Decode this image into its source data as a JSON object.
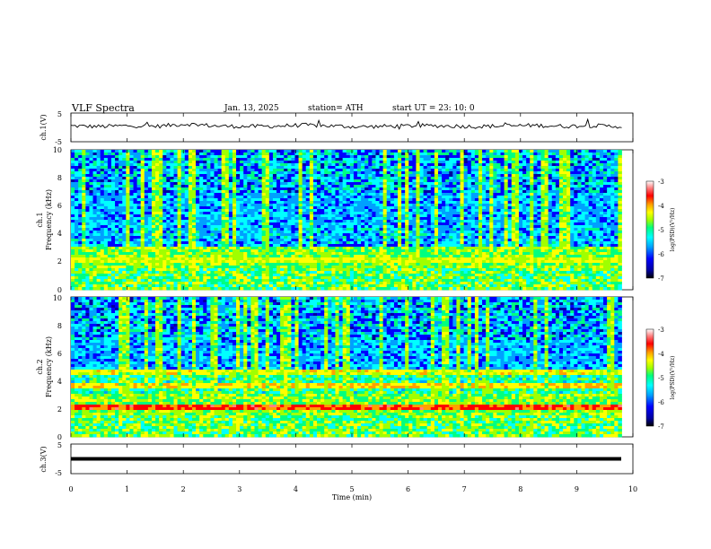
{
  "header": {
    "title": "VLF Spectra",
    "date": "Jan. 13, 2025",
    "station": "station= ATH",
    "start": "start UT =  23: 10: 0"
  },
  "chart_data": [
    {
      "type": "line",
      "panel": "ch1-waveform",
      "ylabel": "ch.1(V)",
      "ylim": [
        -5,
        5
      ],
      "ytick_labels": [
        "5",
        "-5"
      ],
      "series": [
        {
          "values": [
            0.5,
            0.3,
            0.6,
            0.4,
            1.2,
            0.5,
            0.3,
            0.4,
            0.8,
            0.5,
            0.2,
            0.4,
            0.6,
            0.5,
            0.3,
            0.5,
            0.7,
            0.4,
            0.6,
            0.3
          ]
        }
      ],
      "color": "#000000"
    },
    {
      "type": "heatmap",
      "panel": "ch1-spectrogram",
      "ylabel": "ch.1\nFrequency (kHz)",
      "ylim": [
        0,
        10
      ],
      "ytick_labels": [
        "0",
        "2",
        "4",
        "6",
        "8",
        "10"
      ],
      "colorbar": {
        "label": "log(PSD)(V²/Hz)",
        "range": [
          -7,
          -3
        ],
        "tick_labels": [
          "-3",
          "-4",
          "-5",
          "-6",
          "-7"
        ]
      }
    },
    {
      "type": "heatmap",
      "panel": "ch2-spectrogram",
      "ylabel": "ch.2\nFrequency (kHz)",
      "ylim": [
        0,
        10
      ],
      "ytick_labels": [
        "0",
        "2",
        "4",
        "6",
        "8",
        "10"
      ],
      "colorbar": {
        "label": "log(PSD)(V²/Hz)",
        "range": [
          -7,
          -3
        ],
        "tick_labels": [
          "-3",
          "-4",
          "-5",
          "-6",
          "-7"
        ]
      }
    },
    {
      "type": "line",
      "panel": "ch3-waveform",
      "ylabel": "ch.3(V)",
      "ylim": [
        -5,
        5
      ],
      "ytick_labels": [
        "5",
        "-5"
      ],
      "series": [
        {
          "values": [
            0,
            0,
            0,
            0,
            0,
            0,
            0,
            0,
            0,
            0
          ]
        }
      ],
      "color": "#000000"
    }
  ],
  "xaxis": {
    "label": "Time (min)",
    "range": [
      0,
      10
    ],
    "tick_labels": [
      "0",
      "1",
      "2",
      "3",
      "4",
      "5",
      "6",
      "7",
      "8",
      "9",
      "10"
    ],
    "data_end": 9.8
  },
  "colors": {
    "ink": "#000000",
    "colormap": [
      "#000000",
      "#0000a0",
      "#0000ff",
      "#00a0ff",
      "#00ffff",
      "#00ff80",
      "#a0ff00",
      "#ffff00",
      "#ffa000",
      "#ff0000",
      "#ff8080",
      "#ffffff"
    ]
  }
}
